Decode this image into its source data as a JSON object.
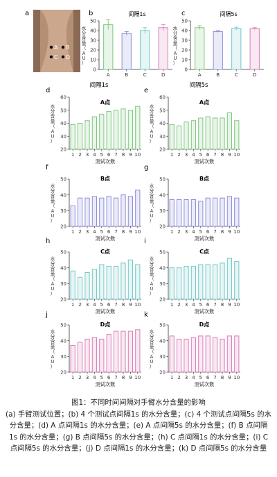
{
  "panel_letters": {
    "a": "a",
    "b": "b",
    "c": "c",
    "d": "d",
    "e": "e",
    "f": "f",
    "g": "g",
    "h": "h",
    "i": "i",
    "j": "j",
    "k": "k"
  },
  "photo": {
    "point_labels": [
      "A",
      "B",
      "C",
      "D"
    ]
  },
  "column_titles": {
    "left": "间隔1s",
    "right": "间隔5s"
  },
  "colors": {
    "A": "#7ec77e",
    "B": "#8d8ed6",
    "C": "#74c8c7",
    "D": "#d97fb9"
  },
  "caption": {
    "title": "图1：不同时间间隔对手臂水分含量的影响",
    "body": "(a) 手臂测试位置；(b) 4 个测试点间隔1s 的水分含量；(c) 4 个测试点间隔5s 的水分含量；(d) A 点间隔1s 的水分含量；(e) A 点间隔5s 的水分含量；(f) B 点间隔1s 的水分含量；(g) B 点间隔5s 的水分含量；(h) C 点间隔1s 的水分含量；(i) C 点间隔5s 的水分含量；(j) D 点间隔1s 的水分含量；(k) D 点间隔5s 的水分含量"
  },
  "chart_data": [
    {
      "id": "b",
      "type": "bar",
      "title": "间隔1s",
      "ylabel": "水分含量（AU）",
      "categories": [
        "A",
        "B",
        "C",
        "D"
      ],
      "values": [
        46,
        37,
        40,
        43
      ],
      "errors": [
        5,
        2,
        3,
        3
      ],
      "ylim": [
        0,
        50
      ],
      "yticks": [
        0,
        10,
        20,
        30,
        40,
        50
      ],
      "colors": [
        "#7ec77e",
        "#8d8ed6",
        "#74c8c7",
        "#d97fb9"
      ]
    },
    {
      "id": "c",
      "type": "bar",
      "title": "间隔5s",
      "ylabel": "水分含量（AU）",
      "categories": [
        "A",
        "B",
        "C",
        "D"
      ],
      "values": [
        43,
        39,
        42,
        42
      ],
      "errors": [
        2,
        1,
        1.5,
        1
      ],
      "ylim": [
        0,
        50
      ],
      "yticks": [
        0,
        10,
        20,
        30,
        40,
        50
      ],
      "colors": [
        "#7ec77e",
        "#8d8ed6",
        "#74c8c7",
        "#d97fb9"
      ]
    },
    {
      "id": "d",
      "type": "bar",
      "title": "A点",
      "ylabel": "水分含量（AU）",
      "xlabel": "测试次数",
      "categories": [
        "1",
        "2",
        "3",
        "4",
        "5",
        "6",
        "7",
        "8",
        "9",
        "10"
      ],
      "values": [
        39,
        40,
        42,
        45,
        47,
        49,
        50,
        51,
        50,
        53
      ],
      "ylim": [
        20,
        60
      ],
      "yticks": [
        20,
        30,
        40,
        50,
        60
      ],
      "color": "#7ec77e"
    },
    {
      "id": "e",
      "type": "bar",
      "title": "A点",
      "ylabel": "水分含量（AU）",
      "xlabel": "测试次数",
      "categories": [
        "1",
        "2",
        "3",
        "4",
        "5",
        "6",
        "7",
        "8",
        "9",
        "10"
      ],
      "values": [
        39,
        38,
        41,
        42,
        44,
        45,
        44,
        44,
        48,
        42
      ],
      "ylim": [
        20,
        60
      ],
      "yticks": [
        20,
        30,
        40,
        50,
        60
      ],
      "color": "#7ec77e"
    },
    {
      "id": "f",
      "type": "bar",
      "title": "B点",
      "ylabel": "水分含量（AU）",
      "xlabel": "测试次数",
      "categories": [
        "1",
        "2",
        "3",
        "4",
        "5",
        "6",
        "7",
        "8",
        "9",
        "10"
      ],
      "values": [
        33,
        38,
        38,
        39,
        38,
        39,
        38,
        40,
        39,
        43
      ],
      "ylim": [
        20,
        50
      ],
      "yticks": [
        20,
        30,
        40,
        50
      ],
      "color": "#8d8ed6"
    },
    {
      "id": "g",
      "type": "bar",
      "title": "B点",
      "ylabel": "水分含量（AU）",
      "xlabel": "测试次数",
      "categories": [
        "1",
        "2",
        "3",
        "4",
        "5",
        "6",
        "7",
        "8",
        "9",
        "10"
      ],
      "values": [
        37,
        37,
        37,
        37,
        36,
        38,
        38,
        38,
        39,
        38
      ],
      "ylim": [
        20,
        50
      ],
      "yticks": [
        20,
        30,
        40,
        50
      ],
      "color": "#8d8ed6"
    },
    {
      "id": "h",
      "type": "bar",
      "title": "C点",
      "ylabel": "水分含量（AU）",
      "xlabel": "测试次数",
      "categories": [
        "1",
        "2",
        "3",
        "4",
        "5",
        "6",
        "7",
        "8",
        "9",
        "10"
      ],
      "values": [
        38,
        34,
        37,
        39,
        42,
        41,
        41,
        43,
        45,
        42
      ],
      "ylim": [
        20,
        50
      ],
      "yticks": [
        20,
        30,
        40,
        50
      ],
      "color": "#74c8c7"
    },
    {
      "id": "i",
      "type": "bar",
      "title": "C点",
      "ylabel": "水分含量（AU）",
      "xlabel": "测试次数",
      "categories": [
        "1",
        "2",
        "3",
        "4",
        "5",
        "6",
        "7",
        "8",
        "9",
        "10"
      ],
      "values": [
        40,
        40,
        41,
        41,
        42,
        42,
        42,
        43,
        46,
        44
      ],
      "ylim": [
        20,
        50
      ],
      "yticks": [
        20,
        30,
        40,
        50
      ],
      "color": "#74c8c7"
    },
    {
      "id": "j",
      "type": "bar",
      "title": "D点",
      "ylabel": "水分含量（AU）",
      "xlabel": "测试次数",
      "categories": [
        "1",
        "2",
        "3",
        "4",
        "5",
        "6",
        "7",
        "8",
        "9",
        "10"
      ],
      "values": [
        37,
        39,
        41,
        42,
        41,
        44,
        46,
        46,
        46,
        47
      ],
      "ylim": [
        20,
        50
      ],
      "yticks": [
        20,
        30,
        40,
        50
      ],
      "color": "#d97fb9"
    },
    {
      "id": "k",
      "type": "bar",
      "title": "D点",
      "ylabel": "水分含量（AU）",
      "xlabel": "测试次数",
      "categories": [
        "1",
        "2",
        "3",
        "4",
        "5",
        "6",
        "7",
        "8",
        "9",
        "10"
      ],
      "values": [
        43,
        41,
        41,
        42,
        43,
        43,
        42,
        41,
        43,
        43
      ],
      "ylim": [
        20,
        50
      ],
      "yticks": [
        20,
        30,
        40,
        50
      ],
      "color": "#d97fb9"
    }
  ]
}
